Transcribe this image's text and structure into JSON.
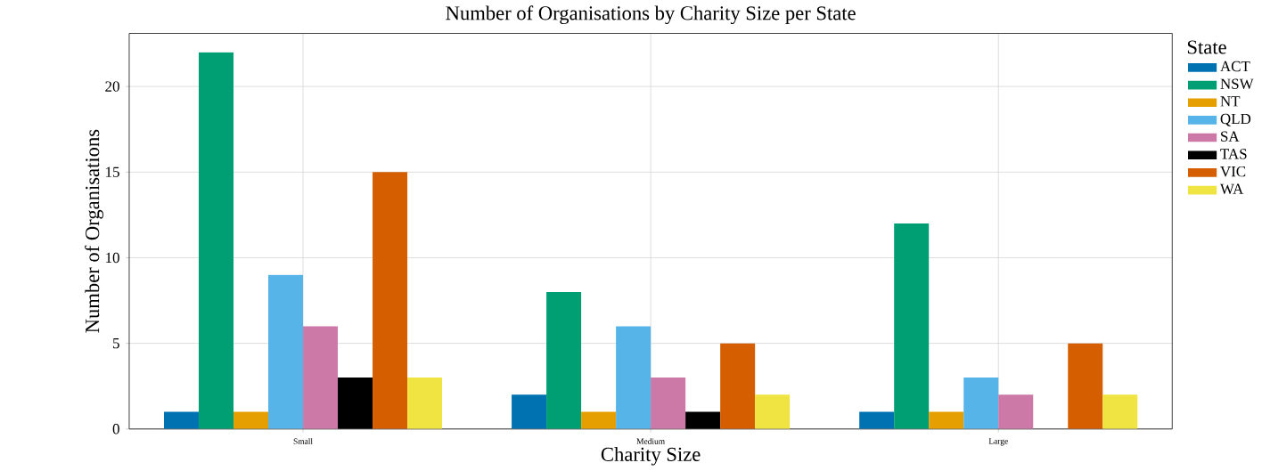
{
  "chart_data": {
    "type": "bar",
    "title": "Number of Organisations by Charity Size per State",
    "xlabel": "Charity Size",
    "ylabel": "Number of Organisations",
    "legend_title": "State",
    "categories": [
      "Small",
      "Medium",
      "Large"
    ],
    "series": [
      {
        "name": "ACT",
        "color": "#0072b2",
        "values": [
          1,
          2,
          1
        ]
      },
      {
        "name": "NSW",
        "color": "#009e73",
        "values": [
          22,
          8,
          12
        ]
      },
      {
        "name": "NT",
        "color": "#e69f00",
        "values": [
          1,
          1,
          1
        ]
      },
      {
        "name": "QLD",
        "color": "#56b4e9",
        "values": [
          9,
          6,
          3
        ]
      },
      {
        "name": "SA",
        "color": "#cc79a7",
        "values": [
          6,
          3,
          2
        ]
      },
      {
        "name": "TAS",
        "color": "#000000",
        "values": [
          3,
          1,
          null
        ]
      },
      {
        "name": "VIC",
        "color": "#d55e00",
        "values": [
          15,
          5,
          5
        ]
      },
      {
        "name": "WA",
        "color": "#f0e442",
        "values": [
          3,
          2,
          2
        ]
      }
    ],
    "ylim": [
      0,
      23.1
    ],
    "yticks": [
      0,
      5,
      10,
      15,
      20
    ],
    "grid": true,
    "legend": "right"
  }
}
